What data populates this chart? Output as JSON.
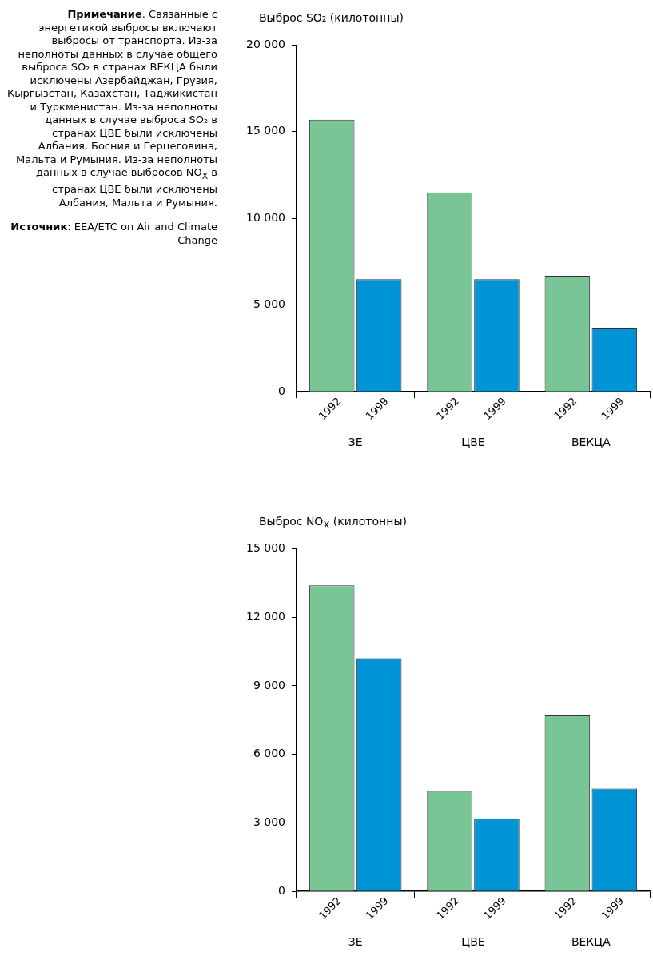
{
  "chart_data": [
    {
      "type": "bar",
      "title": "Выброс SO₂ (килотонны)",
      "categories": [
        "ЗЕ",
        "ЦВЕ",
        "ВЕКЦА"
      ],
      "series": [
        {
          "name": "1992",
          "color": "#7ac595",
          "values": [
            15700,
            11500,
            6700
          ]
        },
        {
          "name": "1999",
          "color": "#0093d5",
          "values": [
            6500,
            6500,
            3700
          ]
        }
      ],
      "ylim": [
        0,
        20000
      ],
      "yticks": [
        {
          "value": 0,
          "label": "0"
        },
        {
          "value": 5000,
          "label": "5 000"
        },
        {
          "value": 10000,
          "label": "10 000"
        },
        {
          "value": 15000,
          "label": "15 000"
        },
        {
          "value": 20000,
          "label": "20 000"
        }
      ],
      "grid": false,
      "legend": false,
      "annotations": [
        "Примечание. Связанные с энергетикой выбросы включают выбросы от транспорта. Из-за неполноты данных в случае общего выброса SO₂ в странах ВЕКЦА были исключены Азербайджан, Грузия, Кыргызстан, Казахстан, Таджикистан и Туркменистан. Из-за неполноты данных в случае выброса SO₂ в странах ЦВЕ были исключены Албания, Босния и Герцеговина, Мальта и Румыния. Из-за неполноты данных в случае выбросов NO$_{X}$ в странах ЦВЕ были исключены Албания, Мальта и Румыния.",
        "Источник: EEA/ETC on Air and Climate Change"
      ]
    },
    {
      "type": "bar",
      "title": "Выброс NO$_{X}$ (килотонны)",
      "categories": [
        "ЗЕ",
        "ЦВЕ",
        "ВЕКЦА"
      ],
      "series": [
        {
          "name": "1992",
          "color": "#7ac595",
          "values": [
            13400,
            4400,
            7700
          ]
        },
        {
          "name": "1999",
          "color": "#0093d5",
          "values": [
            10200,
            3200,
            4500
          ]
        }
      ],
      "ylim": [
        0,
        15000
      ],
      "yticks": [
        {
          "value": 0,
          "label": "0"
        },
        {
          "value": 3000,
          "label": "3 000"
        },
        {
          "value": 6000,
          "label": "6 000"
        },
        {
          "value": 9000,
          "label": "9 000"
        },
        {
          "value": 12000,
          "label": "12 000"
        },
        {
          "value": 15000,
          "label": "15 000"
        }
      ],
      "grid": false,
      "legend": false
    }
  ]
}
